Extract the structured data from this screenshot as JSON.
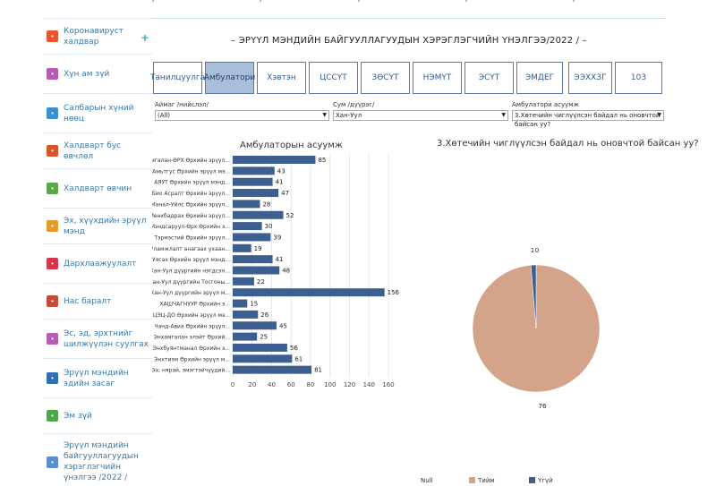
{
  "sidebar": {
    "items": [
      {
        "label": "Коронавируст халдвар",
        "icon": "virus-icon",
        "color": "#e8552c",
        "has_plus": true
      },
      {
        "label": "Хүн ам зүй",
        "icon": "people-icon",
        "color": "#b85bb5",
        "has_plus": false
      },
      {
        "label": "Салбарын хүний нөөц",
        "icon": "staff-icon",
        "color": "#3a8fd1",
        "has_plus": false
      },
      {
        "label": "Халдварт бус өвчлөл",
        "icon": "heart-icon",
        "color": "#d9532b",
        "has_plus": false
      },
      {
        "label": "Халдварт өвчин",
        "icon": "germ-icon",
        "color": "#5aa84a",
        "has_plus": false
      },
      {
        "label": "Эх, хүүхдийн эрүүл мэнд",
        "icon": "mother-child-icon",
        "color": "#e39b2b",
        "has_plus": false
      },
      {
        "label": "Дархлаажуулалт",
        "icon": "vaccine-icon",
        "color": "#d9344b",
        "has_plus": false
      },
      {
        "label": "Нас баралт",
        "icon": "mortality-icon",
        "color": "#c44a3a",
        "has_plus": false
      },
      {
        "label": "Эс, эд, эрхтнийг шилжүүлэн суулгах",
        "icon": "organ-icon",
        "color": "#b85bb5",
        "has_plus": false
      },
      {
        "label": "Эрүүл мэндийн эдийн засаг",
        "icon": "finance-icon",
        "color": "#2f6fb5",
        "has_plus": false
      },
      {
        "label": "Эм зүй",
        "icon": "pill-icon",
        "color": "#4aa84a",
        "has_plus": false
      },
      {
        "label": "Эрүүл мэндийн байгууллагуудын хэрэглэгчийн үнэлгээ /2022 /",
        "icon": "survey-icon",
        "color": "#5a8fd1",
        "has_plus": false
      }
    ]
  },
  "page": {
    "title": "– ЭРҮҮЛ МЭНДИЙН БАЙГУУЛЛАГУУДЫН ХЭРЭГЛЭГЧИЙН ҮНЭЛГЭЭ/2022 / –"
  },
  "tabs": [
    {
      "label": "Танилцуулга",
      "active": false
    },
    {
      "label": "Амбулатори",
      "active": true
    },
    {
      "label": "Хэвтэн",
      "active": false
    },
    {
      "label": "ЦССҮТ",
      "active": false
    },
    {
      "label": "ЗӨСҮТ",
      "active": false
    },
    {
      "label": "НЭМҮТ",
      "active": false
    },
    {
      "label": "ЭСҮТ",
      "active": false
    },
    {
      "label": "ЭМДЕГ",
      "active": false
    },
    {
      "label": "ЭЭХХЗГ",
      "active": false
    },
    {
      "label": "103",
      "active": false
    }
  ],
  "filters": [
    {
      "label": "Аймаг /нийслэл/",
      "value": "(All)"
    },
    {
      "label": "Сум /дүүрэг/",
      "value": "Хан-Уул"
    },
    {
      "label": "Амбулатори асуумж",
      "value": "3.Хөтечийн чиглүүлсэн байдал нь оновчтой байсан уу?"
    }
  ],
  "chart_data": [
    {
      "type": "bar",
      "orientation": "horizontal",
      "title": "Амбулаторын асуумж",
      "categories": [
        "Амгалан-ӨРХ Өрхийн эрүүл...",
        "Амьтгус Өрхийн эрүүл мэ...",
        "АЯУТ Өрхийн эрүүл мэнд...",
        "Био Асралт Өрхийн эрүүл...",
        "Манал-Уйлс Өрхийн эрүүл...",
        "Мөнхбадрах Өрхийн эрүүл...",
        "Мэндсаруул-Өрх Өрхийн э...",
        "Тэрмэстий Өрхийн эрүүл...",
        "Уламжлалт анагаах ухаан...",
        "Уясах Өрхийн эрүүл мэнд...",
        "Хан-Уул дүүргийн нэгдсэн...",
        "Хан-Уул дүүргийн Тосгоны...",
        "Хан-Уул дүүргийн эрүүл м...",
        "ХАШЧАГНУУР Өрхийн э...",
        "ЦЭЦ-ДО Өрхийн эрүүл мэ...",
        "Чанд-Авиа Өрхийн эрүүл...",
        "Энхамгалан элэйт Өрхий...",
        "Энхбуянтманал Өрхийн э...",
        "Энхтиэм Өрхийн эрүүл м...",
        "Эх, нярай, эмэгтэйчүүдий..."
      ],
      "values": [
        85,
        43,
        41,
        47,
        28,
        52,
        30,
        39,
        19,
        41,
        48,
        22,
        156,
        15,
        26,
        45,
        25,
        56,
        61,
        81
      ],
      "xlim": [
        0,
        160
      ],
      "xticks": [
        0,
        20,
        40,
        60,
        80,
        100,
        120,
        140,
        160
      ],
      "bar_color": "#3d5f8f",
      "grid": true
    },
    {
      "type": "pie",
      "title": "3.Хөтечийн чиглүүлсэн байдал нь оновчтой байсан уу?",
      "series": [
        {
          "name": "Null",
          "value": 0,
          "color": "#3d5f8f"
        },
        {
          "name": "Тийм",
          "value": 76,
          "color": "#d4a48a"
        },
        {
          "name": "Үгүй",
          "value": 1,
          "color": "#3d5f8f"
        }
      ],
      "legend_position": "bottom"
    }
  ]
}
